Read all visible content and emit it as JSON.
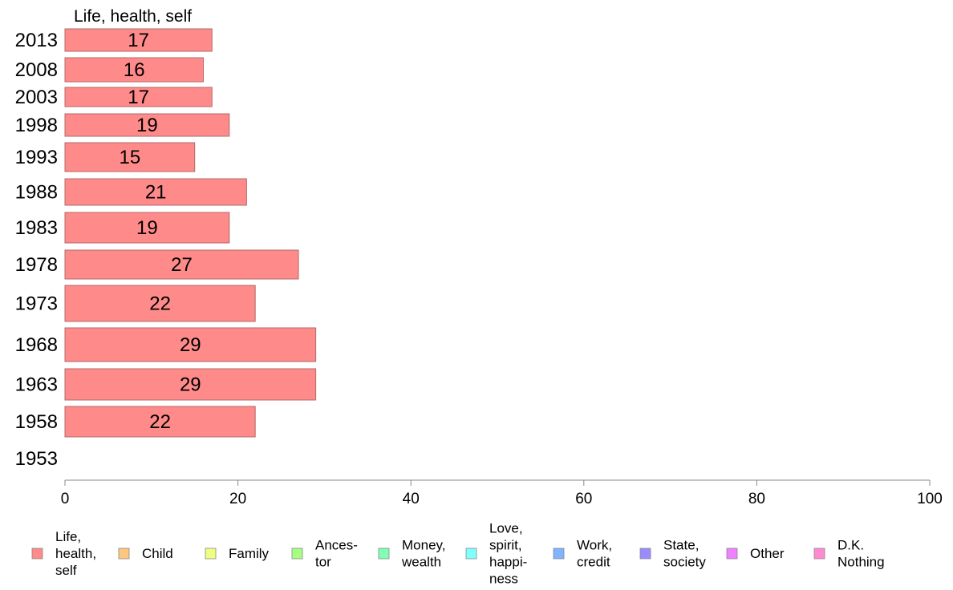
{
  "chart_data": {
    "type": "bar",
    "orientation": "horizontal",
    "stacked": true,
    "title": "",
    "xlabel": "",
    "ylabel": "",
    "xlim": [
      0,
      100
    ],
    "x_ticks": [
      0,
      20,
      40,
      60,
      80,
      100
    ],
    "grid": false,
    "categories": [
      "2013",
      "2008",
      "2003",
      "1998",
      "1993",
      "1988",
      "1983",
      "1978",
      "1973",
      "1968",
      "1963",
      "1958",
      "1953"
    ],
    "series": [
      {
        "name": "Life, health, self",
        "color": "#ff8a8a",
        "values": [
          17,
          16,
          17,
          19,
          15,
          21,
          19,
          27,
          22,
          29,
          29,
          22,
          null
        ],
        "labels": [
          "17",
          "16",
          "17",
          "19",
          "15",
          "21",
          "19",
          "27",
          "22",
          "29",
          "29",
          "22",
          ""
        ]
      }
    ],
    "series_title": "Life, health, self",
    "legend": {
      "placement": "bottom",
      "entries": [
        {
          "lines": [
            "Life,",
            "health,",
            "self"
          ],
          "color": "#ff8a8a"
        },
        {
          "lines": [
            "Child"
          ],
          "color": "#ffc680"
        },
        {
          "lines": [
            "Family"
          ],
          "color": "#eeff80"
        },
        {
          "lines": [
            "Ances-",
            "tor"
          ],
          "color": "#a6ff80"
        },
        {
          "lines": [
            "Money,",
            "wealth"
          ],
          "color": "#80ffb4"
        },
        {
          "lines": [
            "Love,",
            "spirit,",
            "happi-",
            "ness"
          ],
          "color": "#80ffff"
        },
        {
          "lines": [
            "Work,",
            "credit"
          ],
          "color": "#80b4ff"
        },
        {
          "lines": [
            "State,",
            "society"
          ],
          "color": "#9a8aff"
        },
        {
          "lines": [
            "Other"
          ],
          "color": "#f080ff"
        },
        {
          "lines": [
            "D.K.",
            "Nothing"
          ],
          "color": "#ff8ad0"
        }
      ]
    }
  }
}
